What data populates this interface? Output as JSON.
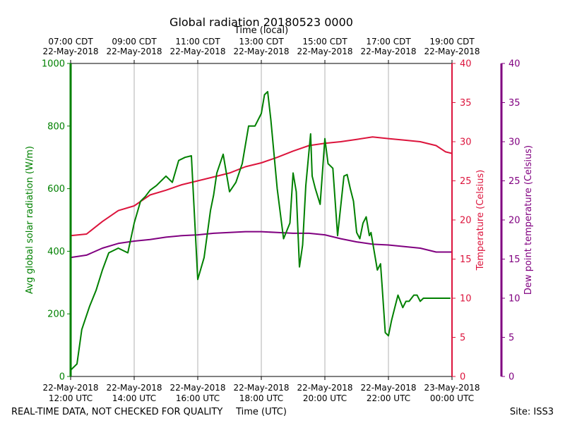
{
  "chart_data": {
    "type": "line",
    "title": "Global radiation 20180523 0000",
    "xlabel": "Time (UTC)",
    "x2label": "Time (local)",
    "footer_left": "REAL-TIME DATA, NOT CHECKED FOR QUALITY",
    "footer_right": "Site: ISS3",
    "x_unit": "hours since 22-May-2018 12:00 UTC",
    "xlim": [
      0,
      12
    ],
    "bottom_ticks": [
      {
        "x": 0,
        "line1": "22-May-2018",
        "line2": "12:00 UTC"
      },
      {
        "x": 2,
        "line1": "22-May-2018",
        "line2": "14:00 UTC"
      },
      {
        "x": 4,
        "line1": "22-May-2018",
        "line2": "16:00 UTC"
      },
      {
        "x": 6,
        "line1": "22-May-2018",
        "line2": "18:00 UTC"
      },
      {
        "x": 8,
        "line1": "22-May-2018",
        "line2": "20:00 UTC"
      },
      {
        "x": 10,
        "line1": "22-May-2018",
        "line2": "22:00 UTC"
      },
      {
        "x": 12,
        "line1": "23-May-2018",
        "line2": "00:00 UTC"
      }
    ],
    "top_ticks": [
      {
        "x": 0,
        "line1": "07:00 CDT",
        "line2": "22-May-2018"
      },
      {
        "x": 2,
        "line1": "09:00 CDT",
        "line2": "22-May-2018"
      },
      {
        "x": 4,
        "line1": "11:00 CDT",
        "line2": "22-May-2018"
      },
      {
        "x": 6,
        "line1": "13:00 CDT",
        "line2": "22-May-2018"
      },
      {
        "x": 8,
        "line1": "15:00 CDT",
        "line2": "22-May-2018"
      },
      {
        "x": 10,
        "line1": "17:00 CDT",
        "line2": "22-May-2018"
      },
      {
        "x": 12,
        "line1": "19:00 CDT",
        "line2": "22-May-2018"
      }
    ],
    "axes": {
      "radiation": {
        "label": "Avg global solar radiation (W/m)",
        "ylim": [
          0,
          1000
        ],
        "ticks": [
          0,
          200,
          400,
          600,
          800,
          1000
        ],
        "color": "#008000"
      },
      "temperature": {
        "label": "Temperature (Celsius)",
        "ylim": [
          0,
          40
        ],
        "ticks": [
          0,
          5,
          10,
          15,
          20,
          25,
          30,
          35,
          40
        ],
        "color": "#dc143c"
      },
      "dewpoint": {
        "label": "Dew point temperature (Celsius)",
        "ylim": [
          0,
          40
        ],
        "ticks": [
          0,
          5,
          10,
          15,
          20,
          25,
          30,
          35,
          40
        ],
        "color": "#800080"
      }
    },
    "series": [
      {
        "name": "Avg global solar radiation",
        "axis": "radiation",
        "color": "#008000",
        "x": [
          0,
          0.2,
          0.35,
          0.5,
          0.6,
          0.8,
          1.0,
          1.2,
          1.5,
          1.8,
          2.0,
          2.2,
          2.35,
          2.5,
          2.7,
          3.0,
          3.2,
          3.4,
          3.6,
          3.8,
          4.0,
          4.2,
          4.4,
          4.5,
          4.6,
          4.8,
          5.0,
          5.2,
          5.4,
          5.6,
          5.8,
          6.0,
          6.1,
          6.2,
          6.3,
          6.5,
          6.7,
          6.9,
          7.0,
          7.1,
          7.2,
          7.3,
          7.4,
          7.55,
          7.6,
          7.7,
          7.85,
          8.0,
          8.1,
          8.25,
          8.4,
          8.6,
          8.7,
          8.8,
          8.9,
          9.0,
          9.1,
          9.2,
          9.3,
          9.4,
          9.45,
          9.55,
          9.65,
          9.75,
          9.8,
          9.9,
          10.0,
          10.1,
          10.2,
          10.3,
          10.45,
          10.55,
          10.65,
          10.8,
          10.9,
          11.0,
          11.1,
          11.2,
          11.3,
          11.4,
          11.5,
          11.6,
          11.7,
          11.8,
          11.9,
          11.95
        ],
        "values": [
          20,
          40,
          150,
          195,
          225,
          275,
          340,
          395,
          410,
          395,
          490,
          560,
          575,
          595,
          610,
          640,
          620,
          690,
          700,
          705,
          310,
          380,
          530,
          580,
          650,
          710,
          590,
          620,
          680,
          800,
          800,
          840,
          900,
          910,
          820,
          600,
          440,
          490,
          650,
          590,
          350,
          420,
          610,
          775,
          640,
          600,
          550,
          760,
          680,
          665,
          450,
          640,
          645,
          600,
          560,
          460,
          440,
          490,
          510,
          450,
          460,
          400,
          340,
          360,
          290,
          140,
          130,
          180,
          220,
          260,
          220,
          240,
          240,
          260,
          260,
          240,
          250,
          250,
          250,
          250,
          250,
          250,
          250,
          250,
          250,
          250
        ]
      },
      {
        "name": "Temperature",
        "axis": "temperature",
        "color": "#dc143c",
        "x": [
          0,
          0.5,
          1.0,
          1.5,
          2.0,
          2.5,
          3.0,
          3.5,
          4.0,
          4.5,
          5.0,
          5.5,
          6.0,
          6.5,
          7.0,
          7.5,
          8.0,
          8.5,
          9.0,
          9.5,
          10.0,
          10.5,
          11.0,
          11.5,
          11.8,
          12.0
        ],
        "values": [
          18,
          18.2,
          19.8,
          21.2,
          21.8,
          23.2,
          23.8,
          24.5,
          25.0,
          25.5,
          26.0,
          26.8,
          27.3,
          28.0,
          28.8,
          29.5,
          29.8,
          30.0,
          30.3,
          30.6,
          30.4,
          30.2,
          30.0,
          29.5,
          28.7,
          28.5
        ]
      },
      {
        "name": "Dew point temperature",
        "axis": "dewpoint",
        "color": "#800080",
        "x": [
          0,
          0.5,
          1.0,
          1.5,
          2.0,
          2.5,
          3.0,
          3.5,
          4.0,
          4.5,
          5.0,
          5.5,
          6.0,
          6.5,
          7.0,
          7.5,
          8.0,
          8.5,
          9.0,
          9.5,
          10.0,
          10.5,
          11.0,
          11.5,
          12.0
        ],
        "values": [
          15.2,
          15.5,
          16.4,
          17.0,
          17.3,
          17.5,
          17.8,
          18.0,
          18.1,
          18.3,
          18.4,
          18.5,
          18.5,
          18.4,
          18.3,
          18.3,
          18.1,
          17.6,
          17.2,
          16.9,
          16.8,
          16.6,
          16.4,
          15.9,
          15.9
        ]
      }
    ]
  }
}
